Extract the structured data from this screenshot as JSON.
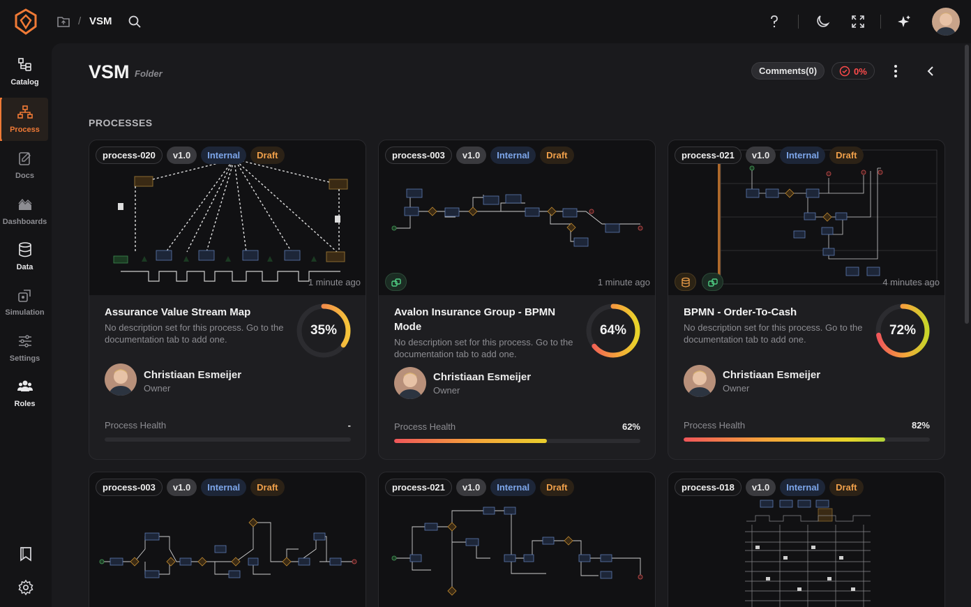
{
  "header": {
    "breadcrumb_separator": "/",
    "current": "VSM"
  },
  "sidebar": {
    "items": [
      {
        "label": "Catalog"
      },
      {
        "label": "Process"
      },
      {
        "label": "Docs"
      },
      {
        "label": "Dashboards"
      },
      {
        "label": "Data"
      },
      {
        "label": "Simulation"
      },
      {
        "label": "Settings"
      },
      {
        "label": "Roles"
      }
    ]
  },
  "page": {
    "title": "VSM",
    "subtitle": "Folder",
    "comments_label": "Comments(0)",
    "score": "0%",
    "section_title": "PROCESSES"
  },
  "colors": {
    "accent": "#f07a36",
    "internal": "#7da6ea",
    "draft": "#f0a04a",
    "danger": "#ff4b4b"
  },
  "cards": [
    {
      "id": "process-020",
      "version": "v1.0",
      "visibility": "Internal",
      "status": "Draft",
      "updated": "1 minute ago",
      "title": "Assurance Value Stream Map",
      "description": "No description set for this process. Go to the documentation tab to add one.",
      "completion": "35%",
      "completion_value": 0.35,
      "owner_name": "Christiaan Esmeijer",
      "owner_role": "Owner",
      "health_label": "Process Health",
      "health_value": "-",
      "health_fraction": 0
    },
    {
      "id": "process-003",
      "version": "v1.0",
      "visibility": "Internal",
      "status": "Draft",
      "updated": "1 minute ago",
      "title": "Avalon Insurance Group - BPMN Mode",
      "description": "No description set for this process. Go to the documentation tab to add one.",
      "completion": "64%",
      "completion_value": 0.64,
      "owner_name": "Christiaan Esmeijer",
      "owner_role": "Owner",
      "health_label": "Process Health",
      "health_value": "62%",
      "health_fraction": 0.62
    },
    {
      "id": "process-021",
      "version": "v1.0",
      "visibility": "Internal",
      "status": "Draft",
      "updated": "4 minutes ago",
      "title": "BPMN - Order-To-Cash",
      "description": "No description set for this process. Go to the documentation tab to add one.",
      "completion": "72%",
      "completion_value": 0.72,
      "owner_name": "Christiaan Esmeijer",
      "owner_role": "Owner",
      "health_label": "Process Health",
      "health_value": "82%",
      "health_fraction": 0.82
    },
    {
      "id": "process-003",
      "version": "v1.0",
      "visibility": "Internal",
      "status": "Draft"
    },
    {
      "id": "process-021",
      "version": "v1.0",
      "visibility": "Internal",
      "status": "Draft"
    },
    {
      "id": "process-018",
      "version": "v1.0",
      "visibility": "Internal",
      "status": "Draft"
    }
  ]
}
